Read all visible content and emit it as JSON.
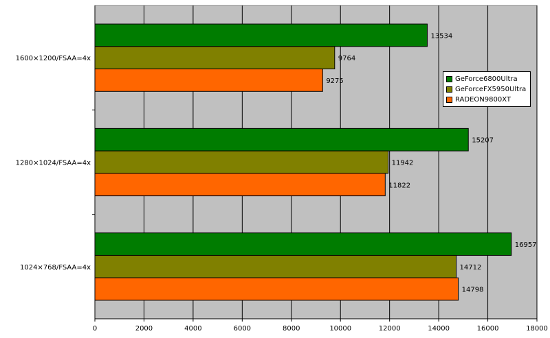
{
  "chart_data": {
    "type": "bar",
    "orientation": "horizontal",
    "categories": [
      "1600×1200/FSAA=4x",
      "1280×1024/FSAA=4x",
      "1024×768/FSAA=4x"
    ],
    "series": [
      {
        "name": "GeForce6800Ultra",
        "color": "#007c00",
        "values": [
          13534,
          15207,
          16957
        ]
      },
      {
        "name": "GeForceFX5950Ultra",
        "color": "#808000",
        "values": [
          9764,
          11942,
          14712
        ]
      },
      {
        "name": "RADEON9800XT",
        "color": "#ff6600",
        "values": [
          9275,
          11822,
          14798
        ]
      }
    ],
    "xlim": [
      0,
      18000
    ],
    "xticks": [
      "0",
      "2000",
      "4000",
      "6000",
      "8000",
      "10000",
      "12000",
      "14000",
      "16000",
      "18000"
    ],
    "grid": true,
    "plot_background": "#c0c0c0",
    "legend_position": "right"
  }
}
